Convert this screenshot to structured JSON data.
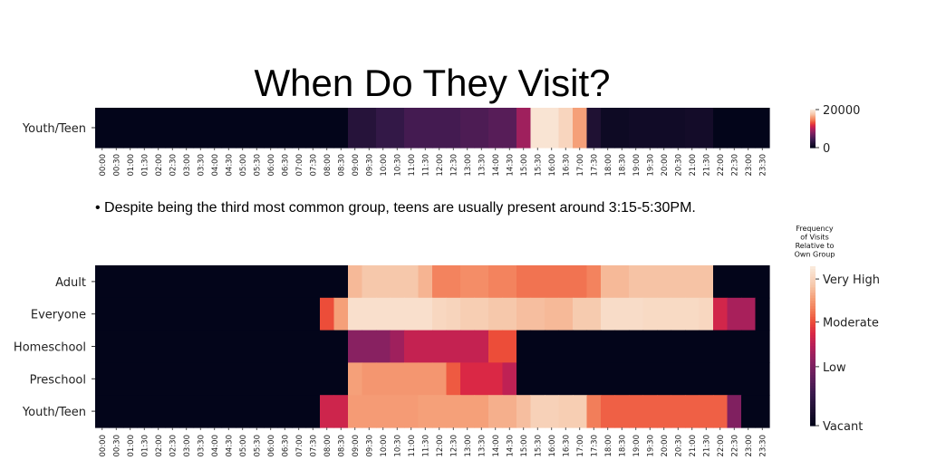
{
  "title": "When Do They Visit?",
  "note": "• Despite being the third most common group, teens are usually present around 3:15-5:30PM.",
  "time_labels": [
    "00:00",
    "00:30",
    "01:00",
    "01:30",
    "02:00",
    "02:30",
    "03:00",
    "03:30",
    "04:00",
    "04:30",
    "05:00",
    "05:30",
    "06:00",
    "06:30",
    "07:00",
    "07:30",
    "08:00",
    "08:30",
    "09:00",
    "09:30",
    "10:00",
    "10:30",
    "11:00",
    "11:30",
    "12:00",
    "12:30",
    "13:00",
    "13:30",
    "14:00",
    "14:30",
    "15:00",
    "15:30",
    "16:00",
    "16:30",
    "17:00",
    "17:30",
    "18:00",
    "18:30",
    "19:00",
    "19:30",
    "20:00",
    "20:30",
    "21:00",
    "21:30",
    "22:00",
    "22:30",
    "23:00",
    "23:30"
  ],
  "chart_data": [
    {
      "type": "heatmap",
      "colormap": "rocket",
      "rows": [
        "Youth/Teen"
      ],
      "x": [
        "00:00",
        "00:30",
        "01:00",
        "01:30",
        "02:00",
        "02:30",
        "03:00",
        "03:30",
        "04:00",
        "04:30",
        "05:00",
        "05:30",
        "06:00",
        "06:30",
        "07:00",
        "07:30",
        "08:00",
        "08:30",
        "09:00",
        "09:30",
        "10:00",
        "10:30",
        "11:00",
        "11:30",
        "12:00",
        "12:30",
        "13:00",
        "13:30",
        "14:00",
        "14:30",
        "15:00",
        "15:30",
        "16:00",
        "16:30",
        "17:00",
        "17:30",
        "18:00",
        "18:30",
        "19:00",
        "19:30",
        "20:00",
        "20:30",
        "21:00",
        "21:30",
        "22:00",
        "22:30",
        "23:00",
        "23:30"
      ],
      "values": [
        [
          0,
          0,
          0,
          0,
          0,
          0,
          0,
          0,
          0,
          0,
          0,
          0,
          0,
          0,
          0,
          0,
          0,
          0,
          2500,
          2500,
          3500,
          3500,
          4500,
          4500,
          4500,
          4500,
          5000,
          5000,
          5500,
          5500,
          9000,
          19500,
          19500,
          18500,
          16000,
          2000,
          800,
          800,
          1000,
          1000,
          1000,
          1000,
          1200,
          1200,
          0,
          0,
          0,
          0
        ]
      ],
      "colorbar": {
        "ticks": [
          0,
          20000
        ],
        "range": [
          0,
          20000
        ]
      }
    },
    {
      "type": "heatmap",
      "colormap": "rocket",
      "rows": [
        "Adult",
        "Everyone",
        "Homeschool",
        "Preschool",
        "Youth/Teen"
      ],
      "x": [
        "00:00",
        "00:30",
        "01:00",
        "01:30",
        "02:00",
        "02:30",
        "03:00",
        "03:30",
        "04:00",
        "04:30",
        "05:00",
        "05:30",
        "06:00",
        "06:30",
        "07:00",
        "07:30",
        "08:00",
        "08:30",
        "09:00",
        "09:30",
        "10:00",
        "10:30",
        "11:00",
        "11:30",
        "12:00",
        "12:30",
        "13:00",
        "13:30",
        "14:00",
        "14:30",
        "15:00",
        "15:30",
        "16:00",
        "16:30",
        "17:00",
        "17:30",
        "18:00",
        "18:30",
        "19:00",
        "19:30",
        "20:00",
        "20:30",
        "21:00",
        "21:30",
        "22:00",
        "22:30",
        "23:00",
        "23:30"
      ],
      "values": [
        [
          0,
          0,
          0,
          0,
          0,
          0,
          0,
          0,
          0,
          0,
          0,
          0,
          0,
          0,
          0,
          0,
          0,
          0,
          0.85,
          0.88,
          0.88,
          0.88,
          0.88,
          0.84,
          0.74,
          0.74,
          0.76,
          0.76,
          0.74,
          0.74,
          0.71,
          0.71,
          0.71,
          0.71,
          0.71,
          0.74,
          0.85,
          0.85,
          0.87,
          0.87,
          0.87,
          0.87,
          0.87,
          0.87,
          0,
          0,
          0,
          0
        ],
        [
          0,
          0,
          0,
          0,
          0,
          0,
          0,
          0,
          0,
          0,
          0,
          0,
          0,
          0,
          0,
          0,
          0.65,
          0.8,
          0.96,
          0.96,
          0.96,
          0.96,
          0.96,
          0.96,
          0.93,
          0.92,
          0.9,
          0.9,
          0.88,
          0.88,
          0.86,
          0.86,
          0.85,
          0.85,
          0.89,
          0.89,
          0.95,
          0.95,
          0.95,
          0.94,
          0.94,
          0.94,
          0.94,
          0.93,
          0.56,
          0.47,
          0.47,
          0
        ],
        [
          0,
          0,
          0,
          0,
          0,
          0,
          0,
          0,
          0,
          0,
          0,
          0,
          0,
          0,
          0,
          0,
          0,
          0,
          0.4,
          0.4,
          0.4,
          0.45,
          0.53,
          0.53,
          0.53,
          0.53,
          0.53,
          0.53,
          0.65,
          0.65,
          0,
          0,
          0,
          0,
          0,
          0,
          0,
          0,
          0,
          0,
          0,
          0,
          0,
          0,
          0,
          0,
          0,
          0
        ],
        [
          0,
          0,
          0,
          0,
          0,
          0,
          0,
          0,
          0,
          0,
          0,
          0,
          0,
          0,
          0,
          0,
          0,
          0,
          0.8,
          0.78,
          0.78,
          0.78,
          0.78,
          0.78,
          0.78,
          0.67,
          0.58,
          0.58,
          0.58,
          0.52,
          0,
          0,
          0,
          0,
          0,
          0,
          0,
          0,
          0,
          0,
          0,
          0,
          0,
          0,
          0,
          0,
          0,
          0
        ],
        [
          0,
          0,
          0,
          0,
          0,
          0,
          0,
          0,
          0,
          0,
          0,
          0,
          0,
          0,
          0,
          0,
          0.55,
          0.55,
          0.79,
          0.79,
          0.79,
          0.79,
          0.79,
          0.8,
          0.8,
          0.8,
          0.8,
          0.8,
          0.83,
          0.83,
          0.86,
          0.91,
          0.91,
          0.9,
          0.9,
          0.73,
          0.68,
          0.68,
          0.68,
          0.68,
          0.68,
          0.68,
          0.68,
          0.68,
          0.68,
          0.38,
          0,
          0
        ]
      ],
      "colorbar": {
        "title_lines": [
          "Frequency",
          "of Visits",
          "Relative to",
          "Own Group"
        ],
        "ticks": [
          {
            "label": "Vacant",
            "value": 0.0
          },
          {
            "label": "Low",
            "value": 0.37
          },
          {
            "label": "Moderate",
            "value": 0.65
          },
          {
            "label": "Very High",
            "value": 0.92
          }
        ],
        "range": [
          0,
          1
        ]
      }
    }
  ]
}
